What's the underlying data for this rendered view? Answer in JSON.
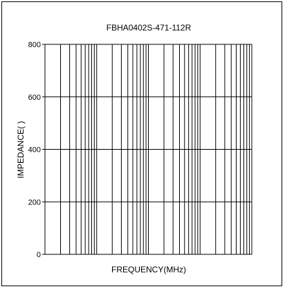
{
  "chart_data": {
    "type": "line",
    "title": "FBHA0402S-471-112R",
    "xlabel": "FREQUENCY(MHz)",
    "ylabel": "IMPEDANCE(  )",
    "x_scale": "log",
    "x_decades": 4,
    "ylim": [
      0,
      800
    ],
    "y_ticks": [
      0,
      200,
      400,
      600,
      800
    ],
    "grid": true,
    "series": []
  }
}
